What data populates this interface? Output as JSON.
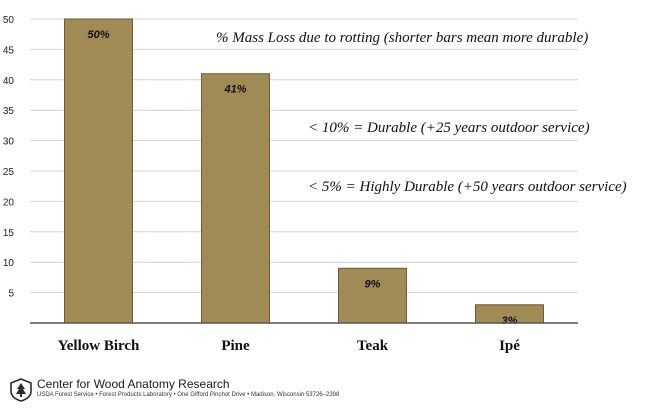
{
  "chart_data": {
    "type": "bar",
    "categories": [
      "Yellow Birch",
      "Pine",
      "Teak",
      "Ipé"
    ],
    "values": [
      50,
      41,
      9,
      3
    ],
    "data_labels": [
      "50%",
      "41%",
      "9%",
      "3%"
    ],
    "ylim": [
      0,
      50
    ],
    "yticks": [
      5,
      10,
      15,
      20,
      25,
      30,
      35,
      40,
      45,
      50
    ],
    "grid": true,
    "bar_color": "#a08a55",
    "bar_edge_color": "#6e5b34",
    "annotations": [
      "% Mass Loss due to rotting (shorter bars mean more durable)",
      "< 10% = Durable (+25 years outdoor service)",
      "< 5% = Highly Durable (+50 years outdoor service)"
    ]
  },
  "footer": {
    "title": "Center for Wood Anatomy Research",
    "address": "USDA Forest Service • Forest Products Laboratory • One Gifford Pinchot Drive • Madison, Wisconsin 53726–2398"
  }
}
